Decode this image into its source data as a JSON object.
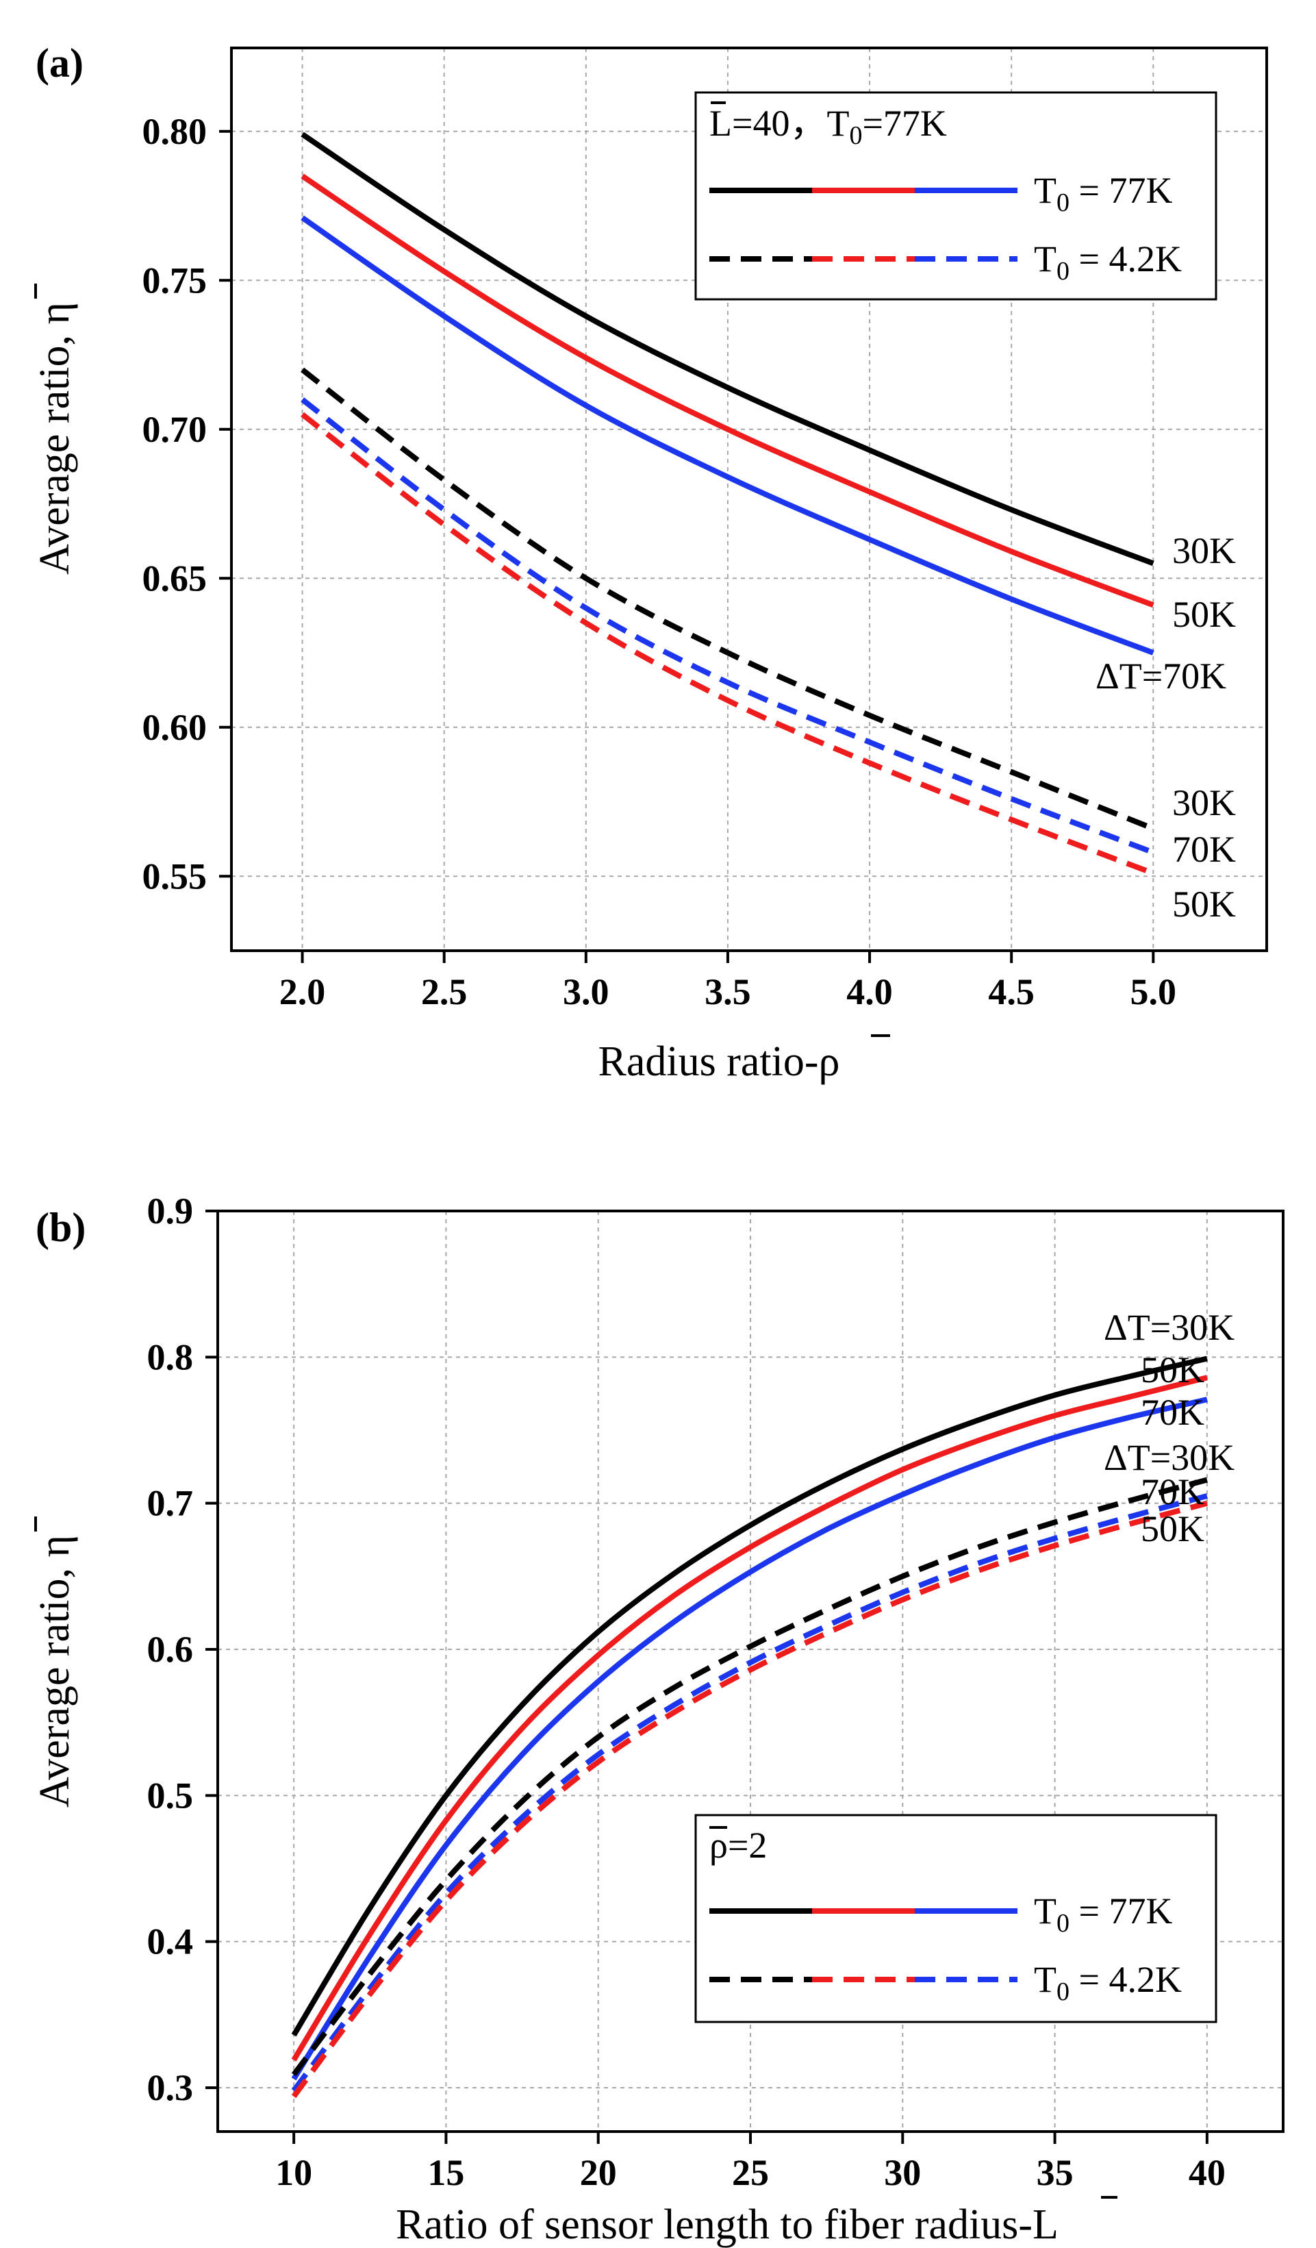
{
  "colors": {
    "black": "#000000",
    "red": "#ee1c1c",
    "blue": "#1c36ee"
  },
  "chart_data": [
    {
      "panel": "(a)",
      "type": "line",
      "title": "",
      "xlabel": "Radius ratio-ρ",
      "ylabel": "Average ratio, η",
      "xlim": [
        1.75,
        5.4
      ],
      "ylim": [
        0.525,
        0.828
      ],
      "xticks": [
        2.0,
        2.5,
        3.0,
        3.5,
        4.0,
        4.5,
        5.0
      ],
      "xtick_labels": [
        "2.0",
        "2.5",
        "3.0",
        "3.5",
        "4.0",
        "4.5",
        "5.0"
      ],
      "yticks": [
        0.55,
        0.6,
        0.65,
        0.7,
        0.75,
        0.8
      ],
      "ytick_labels": [
        "0.55",
        "0.60",
        "0.65",
        "0.70",
        "0.75",
        "0.80"
      ],
      "grid": true,
      "legend": {
        "header_label": "L",
        "header_rest": "=40，",
        "header_t": "T",
        "header_sub": "0",
        "header_value": "=77K",
        "entries": [
          {
            "style": "solid",
            "t": "T",
            "sub": "0",
            "rest": " = 77K"
          },
          {
            "style": "dashed",
            "t": "T",
            "sub": "0",
            "rest": " = 4.2K"
          }
        ],
        "placement": "top-right"
      },
      "series": [
        {
          "name": "ΔT=30K, T0=77K",
          "color": "black",
          "style": "solid",
          "x": [
            2.0,
            2.5,
            3.0,
            3.5,
            4.0,
            4.5,
            5.0
          ],
          "values": [
            0.799,
            0.767,
            0.738,
            0.714,
            0.693,
            0.673,
            0.655
          ]
        },
        {
          "name": "ΔT=50K, T0=77K",
          "color": "red",
          "style": "solid",
          "x": [
            2.0,
            2.5,
            3.0,
            3.5,
            4.0,
            4.5,
            5.0
          ],
          "values": [
            0.785,
            0.753,
            0.724,
            0.7,
            0.679,
            0.659,
            0.641
          ]
        },
        {
          "name": "ΔT=70K, T0=77K",
          "color": "blue",
          "style": "solid",
          "x": [
            2.0,
            2.5,
            3.0,
            3.5,
            4.0,
            4.5,
            5.0
          ],
          "values": [
            0.771,
            0.738,
            0.708,
            0.684,
            0.663,
            0.643,
            0.625
          ]
        },
        {
          "name": "ΔT=30K, T0=4.2K",
          "color": "black",
          "style": "dashed",
          "x": [
            2.0,
            2.5,
            3.0,
            3.5,
            4.0,
            4.5,
            5.0
          ],
          "values": [
            0.72,
            0.683,
            0.65,
            0.625,
            0.604,
            0.585,
            0.566
          ]
        },
        {
          "name": "ΔT=70K, T0=4.2K",
          "color": "blue",
          "style": "dashed",
          "x": [
            2.0,
            2.5,
            3.0,
            3.5,
            4.0,
            4.5,
            5.0
          ],
          "values": [
            0.71,
            0.673,
            0.64,
            0.615,
            0.595,
            0.576,
            0.558
          ]
        },
        {
          "name": "ΔT=50K, T0=4.2K",
          "color": "red",
          "style": "dashed",
          "x": [
            2.0,
            2.5,
            3.0,
            3.5,
            4.0,
            4.5,
            5.0
          ],
          "values": [
            0.705,
            0.668,
            0.635,
            0.609,
            0.588,
            0.569,
            0.551
          ]
        }
      ],
      "annotations": [
        "30K",
        "50K",
        "ΔT=70K",
        "30K",
        "70K",
        "50K"
      ]
    },
    {
      "panel": "(b)",
      "type": "line",
      "title": "",
      "xlabel": "Ratio of sensor length to fiber radius-L",
      "ylabel": "Average ratio, η",
      "xlim": [
        7.5,
        42.5
      ],
      "ylim": [
        0.27,
        0.9
      ],
      "xticks": [
        10,
        15,
        20,
        25,
        30,
        35,
        40
      ],
      "xtick_labels": [
        "10",
        "15",
        "20",
        "25",
        "30",
        "35",
        "40"
      ],
      "yticks": [
        0.3,
        0.4,
        0.5,
        0.6,
        0.7,
        0.8,
        0.9
      ],
      "ytick_labels": [
        "0.3",
        "0.4",
        "0.5",
        "0.6",
        "0.7",
        "0.8",
        "0.9"
      ],
      "grid": true,
      "legend": {
        "header_label": "ρ",
        "header_rest": "=2",
        "entries": [
          {
            "style": "solid",
            "t": "T",
            "sub": "0",
            "rest": " = 77K"
          },
          {
            "style": "dashed",
            "t": "T",
            "sub": "0",
            "rest": " = 4.2K"
          }
        ],
        "placement": "bottom-right"
      },
      "series": [
        {
          "name": "ΔT=30K, T0=77K",
          "color": "black",
          "style": "solid",
          "x": [
            10,
            12.5,
            15,
            17.5,
            20,
            22.5,
            25,
            27.5,
            30,
            32.5,
            35,
            37.5,
            40
          ],
          "values": [
            0.336,
            0.423,
            0.5,
            0.562,
            0.612,
            0.652,
            0.685,
            0.713,
            0.737,
            0.757,
            0.774,
            0.787,
            0.799
          ]
        },
        {
          "name": "ΔT=50K, T0=77K",
          "color": "red",
          "style": "solid",
          "x": [
            10,
            12.5,
            15,
            17.5,
            20,
            22.5,
            25,
            27.5,
            30,
            32.5,
            35,
            37.5,
            40
          ],
          "values": [
            0.319,
            0.405,
            0.483,
            0.546,
            0.596,
            0.637,
            0.67,
            0.698,
            0.723,
            0.743,
            0.76,
            0.773,
            0.786
          ]
        },
        {
          "name": "ΔT=70K, T0=77K",
          "color": "blue",
          "style": "solid",
          "x": [
            10,
            12.5,
            15,
            17.5,
            20,
            22.5,
            25,
            27.5,
            30,
            32.5,
            35,
            37.5,
            40
          ],
          "values": [
            0.306,
            0.39,
            0.466,
            0.528,
            0.578,
            0.619,
            0.653,
            0.682,
            0.706,
            0.727,
            0.745,
            0.759,
            0.771
          ]
        },
        {
          "name": "ΔT=30K, T0=4.2K",
          "color": "black",
          "style": "dashed",
          "x": [
            10,
            12.5,
            15,
            17.5,
            20,
            22.5,
            25,
            27.5,
            30,
            32.5,
            35,
            37.5,
            40
          ],
          "values": [
            0.309,
            0.378,
            0.442,
            0.496,
            0.54,
            0.574,
            0.602,
            0.627,
            0.65,
            0.67,
            0.687,
            0.702,
            0.716
          ]
        },
        {
          "name": "ΔT=70K, T0=4.2K",
          "color": "blue",
          "style": "dashed",
          "x": [
            10,
            12.5,
            15,
            17.5,
            20,
            22.5,
            25,
            27.5,
            30,
            32.5,
            35,
            37.5,
            40
          ],
          "values": [
            0.298,
            0.368,
            0.433,
            0.485,
            0.528,
            0.562,
            0.591,
            0.616,
            0.639,
            0.659,
            0.676,
            0.691,
            0.705
          ]
        },
        {
          "name": "ΔT=50K, T0=4.2K",
          "color": "red",
          "style": "dashed",
          "x": [
            10,
            12.5,
            15,
            17.5,
            20,
            22.5,
            25,
            27.5,
            30,
            32.5,
            35,
            37.5,
            40
          ],
          "values": [
            0.294,
            0.364,
            0.428,
            0.48,
            0.523,
            0.557,
            0.586,
            0.611,
            0.634,
            0.654,
            0.671,
            0.686,
            0.7
          ]
        }
      ],
      "annotations": [
        "ΔT=30K",
        "50K",
        "70K",
        "ΔT=30K",
        "70K",
        "50K"
      ]
    }
  ]
}
